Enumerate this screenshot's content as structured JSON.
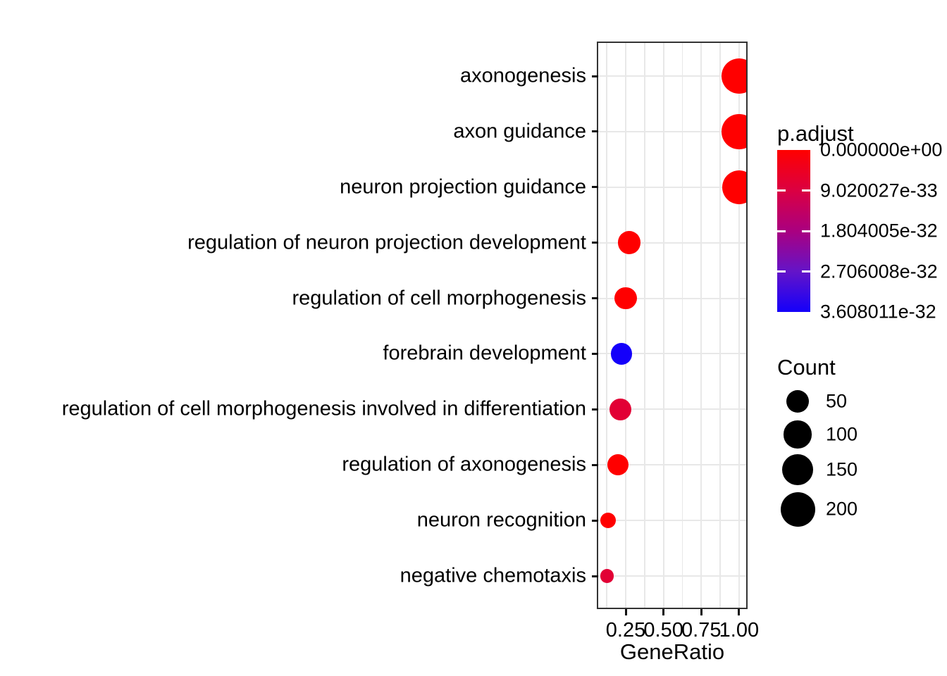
{
  "chart_data": {
    "type": "scatter",
    "subtype": "enrichment-dotplot",
    "title": "",
    "xlabel": "GeneRatio",
    "ylabel": "",
    "xlim": [
      0.068,
      1.047
    ],
    "x_ticks": [
      0.25,
      0.5,
      0.75,
      1.0
    ],
    "x_tick_labels": [
      "0.25",
      "0.50",
      "0.75",
      "1.00"
    ],
    "x_minor_ticks": [
      0.125,
      0.375,
      0.625,
      0.875
    ],
    "grid": true,
    "points": [
      {
        "term": "axonogenesis",
        "gene_ratio": 1.0,
        "count": 210,
        "p_adjust": 0
      },
      {
        "term": "axon guidance",
        "gene_ratio": 1.0,
        "count": 205,
        "p_adjust": 0
      },
      {
        "term": "neuron projection guidance",
        "gene_ratio": 1.0,
        "count": 190,
        "p_adjust": 0
      },
      {
        "term": "regulation of neuron projection development",
        "gene_ratio": 0.273,
        "count": 55,
        "p_adjust": 0
      },
      {
        "term": "regulation of cell morphogenesis",
        "gene_ratio": 0.25,
        "count": 48,
        "p_adjust": 0
      },
      {
        "term": "forebrain development",
        "gene_ratio": 0.222,
        "count": 44,
        "p_adjust": 3.608011e-32
      },
      {
        "term": "regulation of cell morphogenesis involved in differentiation",
        "gene_ratio": 0.215,
        "count": 44,
        "p_adjust": 7.2e-33
      },
      {
        "term": "regulation of axonogenesis",
        "gene_ratio": 0.2,
        "count": 40,
        "p_adjust": 0
      },
      {
        "term": "neuron recognition",
        "gene_ratio": 0.133,
        "count": 10,
        "p_adjust": 0
      },
      {
        "term": "negative chemotaxis",
        "gene_ratio": 0.125,
        "count": 3,
        "p_adjust": 7.2e-33
      }
    ],
    "legend_color": {
      "title": "p.adjust",
      "min": 0,
      "max": 3.608011e-32,
      "labels": [
        "0.000000e+00",
        "9.020027e-33",
        "1.804005e-32",
        "2.706008e-32",
        "3.608011e-32"
      ],
      "palette_stops": [
        "#FF0000",
        "#DB0042",
        "#AA0080",
        "#6414C8",
        "#1400FA"
      ],
      "legend_position": "right"
    },
    "legend_size": {
      "title": "Count",
      "entries": [
        {
          "value": 50,
          "label": "50"
        },
        {
          "value": 100,
          "label": "100"
        },
        {
          "value": 150,
          "label": "150"
        },
        {
          "value": 200,
          "label": "200"
        }
      ],
      "legend_position": "right"
    }
  }
}
